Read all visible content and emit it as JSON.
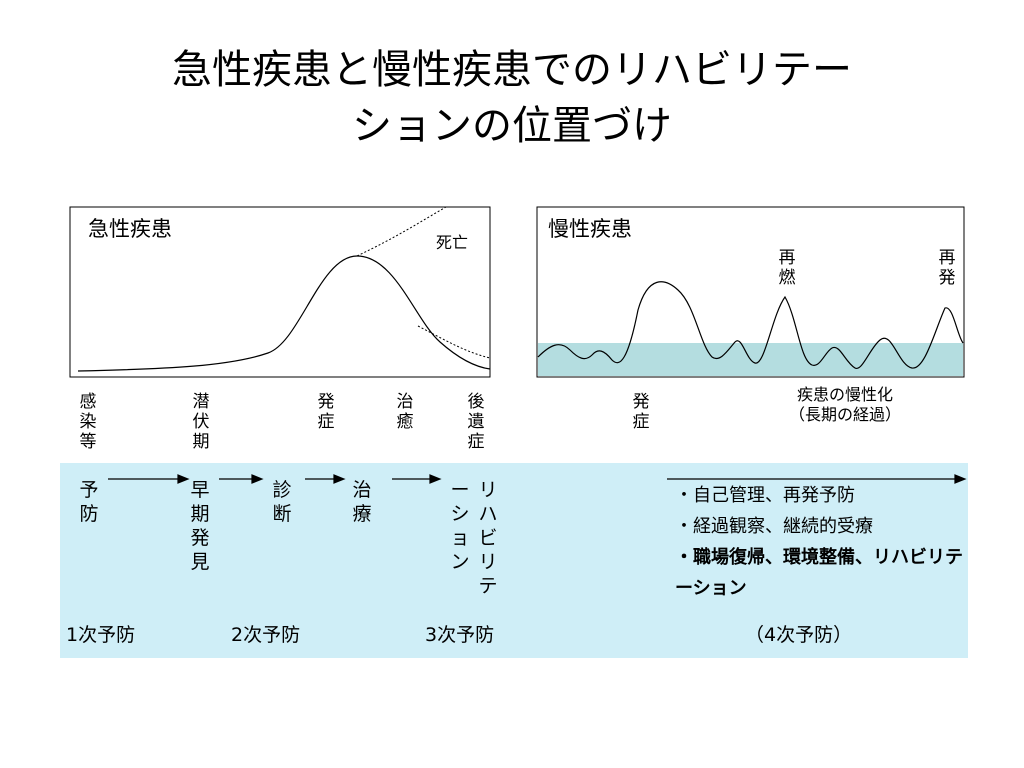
{
  "title_line1": "急性疾患と慢性疾患でのリハビリテー",
  "title_line2": "ションの位置づけ",
  "acute": {
    "label": "急性疾患",
    "death_label": "死亡",
    "stages": [
      "感染等",
      "潜伏期",
      "発症",
      "治癒",
      "後遺症"
    ]
  },
  "chronic": {
    "label": "慢性疾患",
    "relapse1": "再燃",
    "relapse2": "再発",
    "onset": "発症",
    "chronicization_line1": "疾患の慢性化",
    "chronicization_line2": "（長期の経過）"
  },
  "steps": [
    "予防",
    "早期発見",
    "診断",
    "治療",
    "リハビリテーション"
  ],
  "measures": [
    "・自己管理、再発予防",
    "・経過観察、継続的受療",
    "・職場復帰、環境整備、リハビリテーション"
  ],
  "prevention": [
    "1次予防",
    "2次予防",
    "3次予防",
    "（4次予防）"
  ],
  "colors": {
    "band": "#cfeef7",
    "chronic_band": "#b4dde0"
  }
}
